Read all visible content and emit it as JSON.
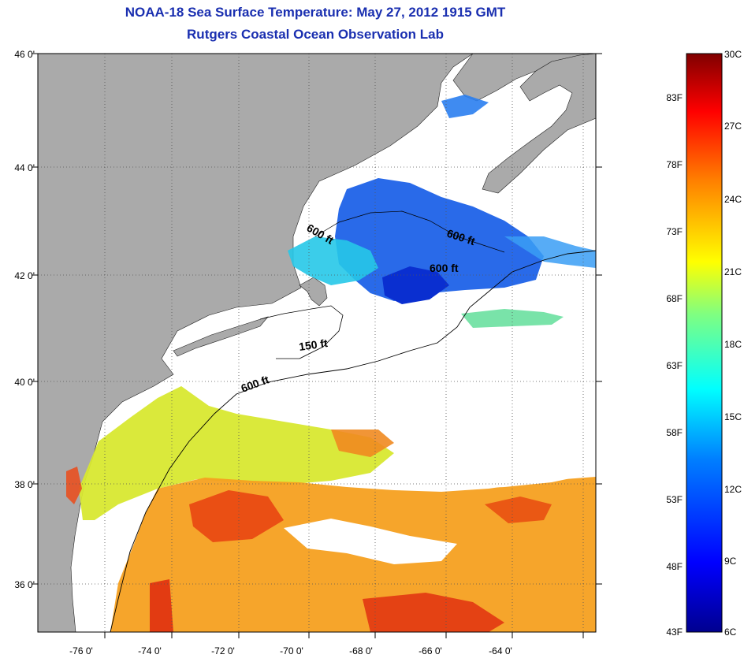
{
  "header": {
    "title": "NOAA-18 Sea Surface Temperature:  May 27, 2012 1915 GMT",
    "subtitle": "Rutgers Coastal Ocean Observation Lab"
  },
  "map": {
    "lat_labels": [
      "46 0'",
      "44 0'",
      "42 0'",
      "40 0'",
      "38 0'",
      "36 0'"
    ],
    "lon_labels": [
      "-76 0'",
      "-74 0'",
      "-72 0'",
      "-70 0'",
      "-68 0'",
      "-66 0'",
      "-64 0'"
    ],
    "depth_labels": [
      "600 ft",
      "600 ft",
      "600 ft",
      "150 ft",
      "600 ft"
    ],
    "colors": {
      "land": "#aaaaaa",
      "cloud": "#ffffff",
      "grid": "#555555"
    }
  },
  "colorbar": {
    "fahrenheit_labels": [
      "83F",
      "78F",
      "73F",
      "68F",
      "63F",
      "58F",
      "53F",
      "48F",
      "43F"
    ],
    "celsius_labels": [
      "30C",
      "27C",
      "24C",
      "21C",
      "18C",
      "15C",
      "12C",
      "9C",
      "6C"
    ],
    "colors": [
      "#00008f",
      "#0000ff",
      "#0080ff",
      "#00ffff",
      "#80ff80",
      "#ffff00",
      "#ff8000",
      "#ff0000",
      "#800000"
    ]
  }
}
